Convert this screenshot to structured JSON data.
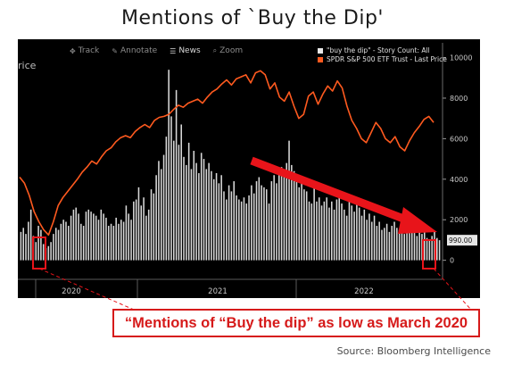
{
  "title": "Mentions of `Buy the Dip'",
  "toolbar": {
    "items": [
      {
        "label": "Track",
        "icon": "track-icon"
      },
      {
        "label": "Annotate",
        "icon": "annotate-icon"
      },
      {
        "label": "News",
        "icon": "news-icon"
      },
      {
        "label": "Zoom",
        "icon": "zoom-icon"
      }
    ],
    "active": "News"
  },
  "price_stub": "rice",
  "callout": "“Mentions of “Buy the dip” as low as March 2020",
  "source": "Source: Bloomberg Intelligence",
  "colors": {
    "background": "#000000",
    "bars": "#d9d9d9",
    "price_line": "#ff5a1f",
    "arrow": "#e8141a",
    "highlight": "#e8141a"
  },
  "chart_data": {
    "type": "bar",
    "title": "Mentions of `Buy the Dip'",
    "x_tick_labels": [
      "2020",
      "2021",
      "2022"
    ],
    "y_axis": {
      "side": "right",
      "ticks": [
        0,
        2000,
        4000,
        6000,
        8000,
        10000
      ],
      "ylim": [
        -500,
        10200
      ]
    },
    "last_value_label": "990.00",
    "grid": false,
    "legend_position": "top-right",
    "series": [
      {
        "name": "\"buy the dip\" - Story Count: All",
        "type": "bar",
        "values": [
          1400,
          1600,
          1300,
          1900,
          2500,
          1200,
          900,
          1700,
          1500,
          800,
          600,
          700,
          900,
          1300,
          1600,
          1500,
          1800,
          2000,
          1900,
          1700,
          2200,
          2500,
          2600,
          2300,
          1800,
          1700,
          2400,
          2500,
          2400,
          2300,
          2200,
          2000,
          2500,
          2300,
          2100,
          1700,
          1800,
          1700,
          2100,
          1800,
          2000,
          1900,
          2700,
          2300,
          2000,
          2900,
          3000,
          3600,
          2700,
          3100,
          2200,
          2500,
          3500,
          3300,
          4200,
          4900,
          4500,
          5200,
          6100,
          9400,
          7100,
          5900,
          8400,
          5700,
          6700,
          5100,
          4700,
          5800,
          4500,
          5400,
          4800,
          4300,
          5300,
          5000,
          4500,
          4800,
          4400,
          4000,
          4300,
          3800,
          4200,
          3400,
          3000,
          3700,
          3400,
          3900,
          3200,
          3000,
          2900,
          3100,
          2800,
          3200,
          3700,
          3300,
          3900,
          4100,
          3700,
          3600,
          3500,
          2800,
          3900,
          4200,
          3800,
          4400,
          4600,
          4300,
          4800,
          5900,
          4700,
          4400,
          4000,
          3600,
          3900,
          3500,
          3400,
          2900,
          2800,
          3600,
          2900,
          3100,
          2700,
          2900,
          3100,
          2600,
          2900,
          2500,
          3000,
          3400,
          2800,
          2500,
          2200,
          3100,
          2700,
          2400,
          2900,
          2600,
          2200,
          2500,
          2000,
          2300,
          1900,
          2200,
          1700,
          1900,
          1500,
          1600,
          1800,
          1400,
          1700,
          1900,
          1600,
          1500,
          1800,
          1300,
          1500,
          1700,
          1600,
          1400,
          1200,
          1500,
          1300,
          1400,
          1100,
          1000,
          1200,
          1400,
          1100,
          990
        ]
      },
      {
        "name": "SPDR S&P 500 ETF Trust - Last Price",
        "type": "line",
        "values": [
          4100,
          3800,
          3200,
          2400,
          1900,
          1500,
          1250,
          1900,
          2700,
          3100,
          3400,
          3700,
          4000,
          4350,
          4600,
          4900,
          4750,
          5100,
          5400,
          5550,
          5850,
          6050,
          6150,
          6050,
          6350,
          6550,
          6700,
          6550,
          6900,
          7050,
          7100,
          7200,
          7450,
          7650,
          7550,
          7750,
          7850,
          7950,
          7750,
          8050,
          8300,
          8450,
          8700,
          8900,
          8650,
          8950,
          9050,
          9150,
          8750,
          9250,
          9350,
          9150,
          8450,
          8750,
          8050,
          7850,
          8300,
          7600,
          7000,
          7200,
          8100,
          8300,
          7700,
          8200,
          8600,
          8350,
          8850,
          8500,
          7600,
          6900,
          6500,
          6000,
          5800,
          6300,
          6800,
          6500,
          6000,
          5800,
          6100,
          5600,
          5400,
          5900,
          6300,
          6600,
          6950,
          7100,
          6800
        ]
      }
    ]
  }
}
